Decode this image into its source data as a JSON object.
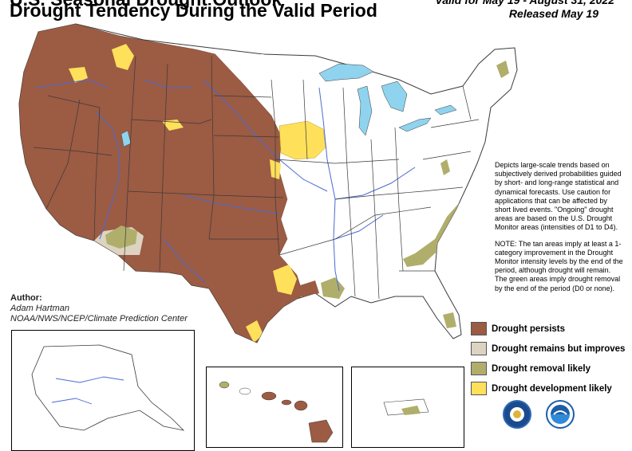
{
  "header": {
    "title_clipped": "U.S. Seasonal Drought Outlook",
    "subtitle": "Drought Tendency During the Valid Period",
    "valid_period": "Valid for May 19 - August 31, 2022",
    "released": "Released May 19"
  },
  "description": {
    "paragraph1": "Depicts large-scale trends based on subjectively derived probabilities guided by short- and long-range statistical and dynamical forecasts. Use caution for applications that can be affected by short lived events. \"Ongoing\" drought areas are based on the U.S. Drought Monitor areas (intensities of D1 to D4).",
    "paragraph2": "NOTE: The tan areas imply at least a 1-category improvement in the Drought Monitor intensity levels by the end of the period, although drought will remain. The green areas imply drought removal by the end of the period (D0 or none)."
  },
  "author": {
    "label": "Author:",
    "name": "Adam Hartman",
    "org": "NOAA/NWS/NCEP/Climate Prediction Center"
  },
  "legend": {
    "items": [
      {
        "label": "Drought persists",
        "color": "#9c5b43"
      },
      {
        "label": "Drought remains but improves",
        "color": "#ddd3c1"
      },
      {
        "label": "Drought removal likely",
        "color": "#b0ae6b"
      },
      {
        "label": "Drought development likely",
        "color": "#ffe05b"
      }
    ]
  },
  "colors": {
    "persists": "#9c5b43",
    "improves": "#ddd3c1",
    "removal": "#b0ae6b",
    "development": "#ffe05b",
    "water": "#8fd3ee",
    "river": "#4a6ad1",
    "boundary": "#3a3a3a"
  },
  "logos": [
    "usda-seal-icon",
    "noaa-logo-icon"
  ]
}
